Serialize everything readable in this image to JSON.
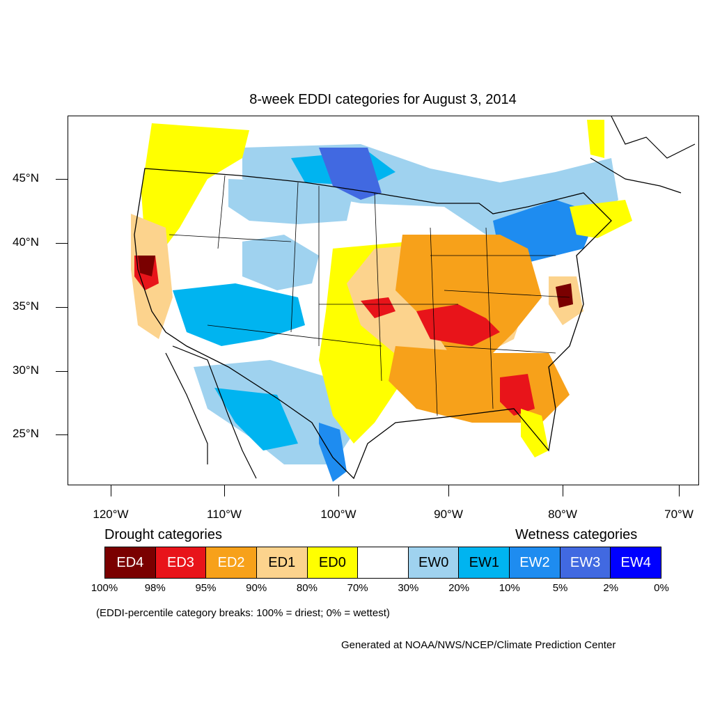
{
  "title": "8-week EDDI categories for August 3, 2014",
  "map": {
    "latitude_labels": [
      "45°N",
      "40°N",
      "35°N",
      "30°N",
      "25°N"
    ],
    "longitude_labels": [
      "120°W",
      "110°W",
      "100°W",
      "90°W",
      "80°W",
      "70°W"
    ]
  },
  "legend": {
    "drought_heading": "Drought categories",
    "wetness_heading": "Wetness categories",
    "categories": [
      {
        "label": "ED4",
        "color": "#7a0000",
        "text_color": "#ffffff"
      },
      {
        "label": "ED3",
        "color": "#e8141a",
        "text_color": "#ffffff"
      },
      {
        "label": "ED2",
        "color": "#f7a11a",
        "text_color": "#ffffff"
      },
      {
        "label": "ED1",
        "color": "#fcd38d",
        "text_color": "#000000"
      },
      {
        "label": "ED0",
        "color": "#ffff00",
        "text_color": "#000000"
      },
      {
        "label": "",
        "color": "#ffffff",
        "text_color": "#000000"
      },
      {
        "label": "EW0",
        "color": "#9fd2ef",
        "text_color": "#000000"
      },
      {
        "label": "EW1",
        "color": "#00b4f0",
        "text_color": "#000000"
      },
      {
        "label": "EW2",
        "color": "#1e8cf0",
        "text_color": "#ffffff"
      },
      {
        "label": "EW3",
        "color": "#4169e1",
        "text_color": "#ffffff"
      },
      {
        "label": "EW4",
        "color": "#0000ff",
        "text_color": "#ffffff"
      }
    ],
    "percentile_ticks": [
      "100%",
      "98%",
      "95%",
      "90%",
      "80%",
      "70%",
      "30%",
      "20%",
      "10%",
      "5%",
      "2%",
      "0%"
    ]
  },
  "note": "(EDDI-percentile category breaks: 100% = driest; 0% = wettest)",
  "credit": "Generated at NOAA/NWS/NCEP/Climate Prediction Center"
}
